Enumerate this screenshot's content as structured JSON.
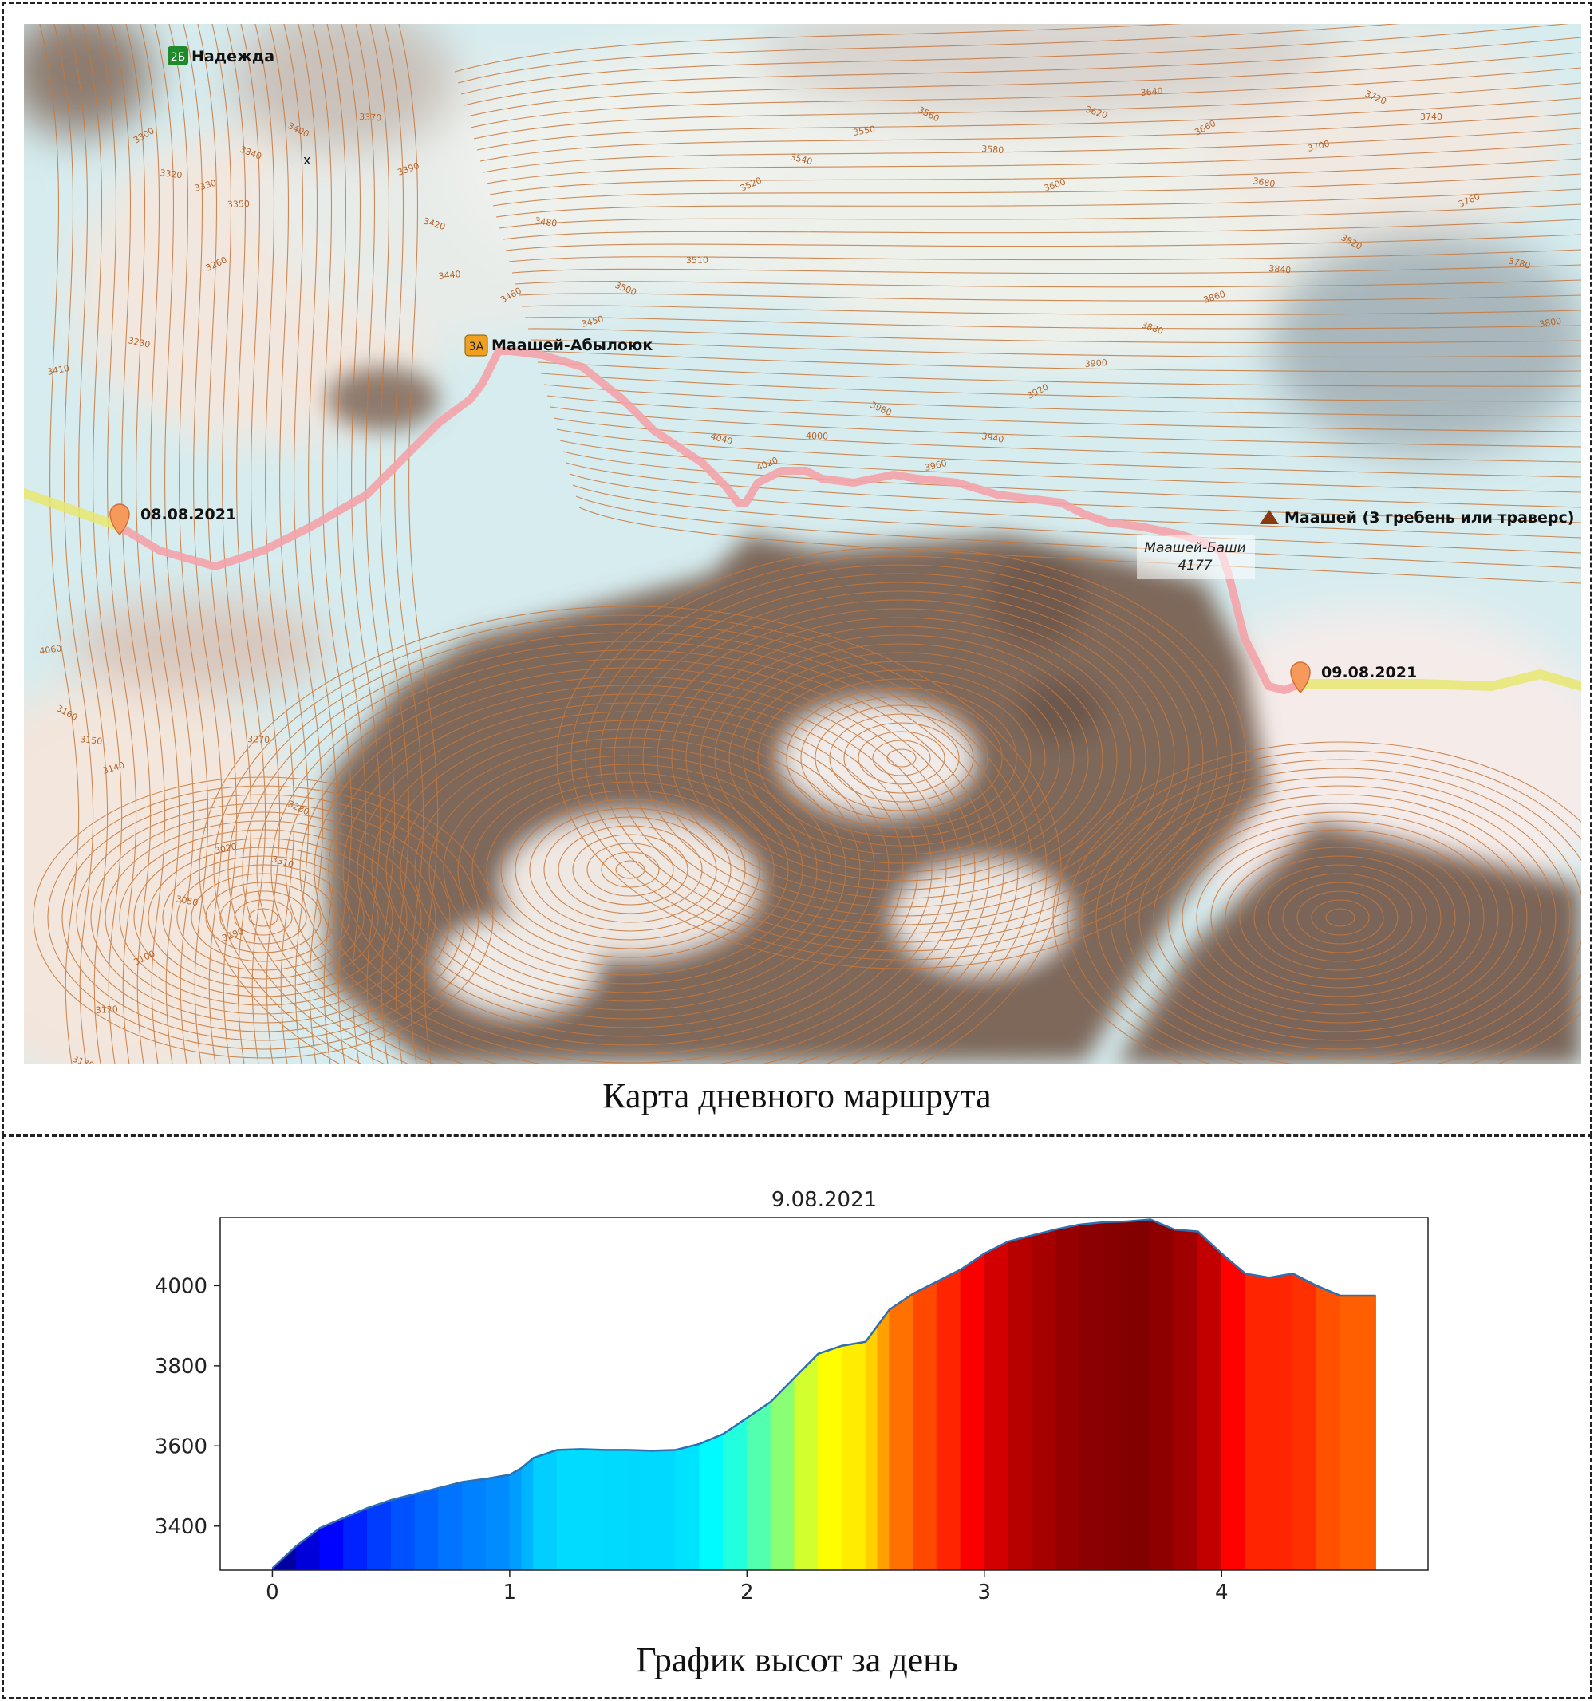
{
  "map": {
    "caption": "Карта дневного маршрута",
    "peaks": [
      {
        "badge": "2Б",
        "badge_color": "#1e8a2a",
        "name": "Надежда"
      },
      {
        "badge": "3А",
        "badge_color": "#f0a020",
        "name": "Маашей-Абылоюк"
      }
    ],
    "summit": {
      "name": "Маашей (3 гребень или траверс)",
      "color": "#8b3a0e"
    },
    "height_mark": {
      "name": "Маашей-Баши",
      "elevation": "4177"
    },
    "waypoints": [
      {
        "date": "08.08.2021"
      },
      {
        "date": "09.08.2021"
      }
    ],
    "cross_mark": "x",
    "contour_labels": [
      "3300",
      "3320",
      "3330",
      "3340",
      "3350",
      "3260",
      "3230",
      "3410",
      "3400",
      "3370",
      "3390",
      "3420",
      "3440",
      "3460",
      "3480",
      "3450",
      "3500",
      "3510",
      "3520",
      "3540",
      "3550",
      "3560",
      "3580",
      "3600",
      "3620",
      "3640",
      "3660",
      "3680",
      "3700",
      "3720",
      "3740",
      "3760",
      "3780",
      "3800",
      "3820",
      "3840",
      "3860",
      "3880",
      "3900",
      "3920",
      "3940",
      "3960",
      "3980",
      "4000",
      "4020",
      "4040",
      "4060",
      "3160",
      "3150",
      "3140",
      "3130",
      "3120",
      "3100",
      "3050",
      "3020",
      "3280",
      "3270",
      "3290",
      "3310"
    ],
    "colors": {
      "route": "#f4a3a8",
      "track": "#e8e870",
      "marker": "#f59a5a",
      "contour": "#c8773a",
      "ice": "#d8edf0",
      "rock": "#7f6a5e"
    }
  },
  "chart_data": {
    "type": "area",
    "title": "9.08.2021",
    "xlabel": "",
    "ylabel": "",
    "xlim": [
      -0.22,
      4.87
    ],
    "ylim": [
      3290,
      4170
    ],
    "xticks": [
      0,
      1,
      2,
      3,
      4
    ],
    "yticks": [
      3400,
      3600,
      3800,
      4000
    ],
    "x": [
      0,
      0.1,
      0.2,
      0.3,
      0.4,
      0.5,
      0.6,
      0.7,
      0.8,
      0.9,
      1.0,
      1.05,
      1.1,
      1.2,
      1.3,
      1.4,
      1.5,
      1.6,
      1.7,
      1.8,
      1.9,
      2.0,
      2.1,
      2.2,
      2.3,
      2.4,
      2.5,
      2.55,
      2.6,
      2.7,
      2.8,
      2.9,
      3.0,
      3.1,
      3.2,
      3.3,
      3.4,
      3.5,
      3.6,
      3.7,
      3.8,
      3.9,
      4.0,
      4.1,
      4.2,
      4.3,
      4.4,
      4.5,
      4.6,
      4.65
    ],
    "elevation": [
      3295,
      3350,
      3395,
      3420,
      3445,
      3465,
      3480,
      3495,
      3510,
      3518,
      3528,
      3545,
      3570,
      3590,
      3592,
      3590,
      3590,
      3588,
      3590,
      3605,
      3630,
      3670,
      3710,
      3770,
      3830,
      3850,
      3860,
      3900,
      3940,
      3980,
      4010,
      4040,
      4080,
      4110,
      4125,
      4140,
      4152,
      4158,
      4160,
      4165,
      4140,
      4135,
      4080,
      4030,
      4020,
      4030,
      4000,
      3975,
      3975,
      3975
    ],
    "fill_colormap": "jet by elevation",
    "line_color": "#2f6fb0"
  }
}
